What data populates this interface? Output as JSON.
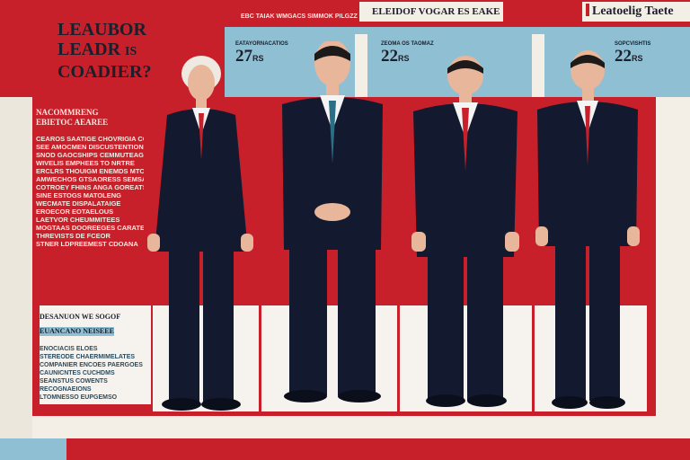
{
  "header": {
    "title_lines": [
      "LEAUBOR",
      "LEADR",
      "COADIER?"
    ],
    "title_mark": "IS",
    "top_small": "EBC TAIAK WMGACS SIMMOK PILGZZ",
    "top_center": "ELEIDOF VOGAR ES EAKE",
    "top_right": "Leatoelig Taete"
  },
  "stats": [
    {
      "value": "27",
      "sub": "RS",
      "label": "EATAYORNACATIOS"
    },
    {
      "value": "22",
      "sub": "RS",
      "label": "ZEOMA OS TAOMAZ"
    },
    {
      "value": "22",
      "sub": "RS",
      "label": "SOPCVISHTIS"
    }
  ],
  "left_panel": {
    "heading_lines": [
      "NACOMMRENG",
      "EBIETOC AEAREE"
    ],
    "body_lines": [
      "CEAROS SAATIGE CHOVRIGIA COOMMTO",
      "SEE AMOCMEN DISCUSTENTIONES",
      "SNOD GAOCSHIPS CEMMUTEAGS",
      "WIVELIS EMPHEES TO NRTRE",
      "ERCLRS THOUIGM ENEMDS MTCA",
      "AMWECHOS GTSAORESS SEMSA",
      "COTROEY FHINS ANGA GOREATS",
      "SINE ESTOGS MATOLENG",
      "WECMATE DISPALATAIGE",
      "EROECOR EOTAELOUS",
      "LAETVOR CHEUMMITEES",
      "MOGTAAS DOOREEGES CARATE",
      "THREVISTS DE FCEOR",
      "STNER LDPREEMEST CDOANA"
    ]
  },
  "lower_panel": {
    "heading_lines": [
      "DESANUON WE SOGOF",
      "EUANCANO NEISEEE"
    ],
    "body_lines": [
      "ENOCIACIS ELOES",
      "STEREODE CHAERMIMELATES",
      "COMPANIER ENCOES PAERGOES",
      "CAUNICNTES CUCHDMS",
      "SEANSTUS COWENTS",
      "RECOGNAEIONS",
      "LTOMNESSO EUPGEMSO"
    ]
  },
  "colors": {
    "accent": "#c8202a",
    "panel_blue": "#8fbfd3",
    "suit": "#131a2f"
  }
}
